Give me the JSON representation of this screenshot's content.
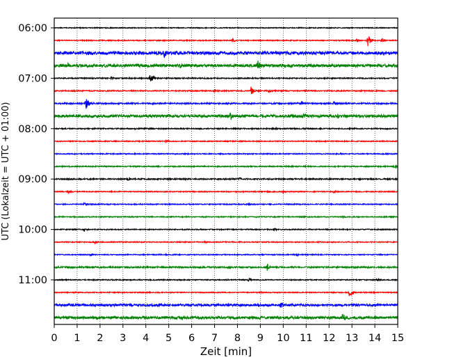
{
  "chart_data": {
    "type": "line",
    "title": "",
    "xlabel": "Zeit  [min]",
    "ylabel": "UTC (Lokalzeit = UTC + 01:00)",
    "xlim": [
      0,
      15
    ],
    "x_ticks": [
      0,
      1,
      2,
      3,
      4,
      5,
      6,
      7,
      8,
      9,
      10,
      11,
      12,
      13,
      14,
      15
    ],
    "y_ticks": [
      "06:00",
      "07:00",
      "08:00",
      "09:00",
      "10:00",
      "11:00"
    ],
    "grid": {
      "x": true,
      "y": false
    },
    "trace_colors": [
      "#000000",
      "#ff0000",
      "#0000ff",
      "#008000"
    ],
    "trace_start": "06:00",
    "trace_interval_min": 15,
    "traces": [
      {
        "time": "06:00",
        "color": "#000000",
        "noise": 0.6,
        "events": []
      },
      {
        "time": "06:15",
        "color": "#ff0000",
        "noise": 0.7,
        "events": [
          [
            7.8,
            3.5
          ],
          [
            13.7,
            9
          ],
          [
            13.2,
            2.5
          ],
          [
            14.3,
            3
          ]
        ]
      },
      {
        "time": "06:30",
        "color": "#0000ff",
        "noise": 2.2,
        "events": [
          [
            4.8,
            8
          ],
          [
            6.4,
            3
          ],
          [
            1.5,
            3
          ]
        ]
      },
      {
        "time": "06:45",
        "color": "#008000",
        "noise": 2.0,
        "events": [
          [
            0.6,
            4
          ],
          [
            5.5,
            4
          ],
          [
            8.9,
            8
          ],
          [
            1.0,
            3
          ]
        ]
      },
      {
        "time": "07:00",
        "color": "#000000",
        "noise": 0.8,
        "events": [
          [
            4.2,
            9
          ],
          [
            2.5,
            2.5
          ]
        ]
      },
      {
        "time": "07:15",
        "color": "#ff0000",
        "noise": 0.8,
        "events": [
          [
            8.6,
            7
          ],
          [
            9.4,
            3
          ],
          [
            7.0,
            2.5
          ]
        ]
      },
      {
        "time": "07:30",
        "color": "#0000ff",
        "noise": 1.0,
        "events": [
          [
            1.4,
            8
          ],
          [
            10.8,
            3.5
          ],
          [
            12.2,
            2.5
          ]
        ]
      },
      {
        "time": "07:45",
        "color": "#008000",
        "noise": 1.9,
        "events": [
          [
            7.7,
            7
          ],
          [
            10.9,
            5
          ],
          [
            12.4,
            3.5
          ],
          [
            10.4,
            3
          ]
        ]
      },
      {
        "time": "08:00",
        "color": "#000000",
        "noise": 0.8,
        "events": [
          [
            9.7,
            3
          ]
        ]
      },
      {
        "time": "08:15",
        "color": "#ff0000",
        "noise": 0.7,
        "events": [
          [
            4.9,
            2.5
          ]
        ]
      },
      {
        "time": "08:30",
        "color": "#0000ff",
        "noise": 0.7,
        "events": [
          [
            12.5,
            2.5
          ]
        ]
      },
      {
        "time": "08:45",
        "color": "#008000",
        "noise": 0.8,
        "events": [
          [
            14.9,
            3.5
          ]
        ]
      },
      {
        "time": "09:00",
        "color": "#000000",
        "noise": 0.9,
        "events": [
          [
            3.2,
            2.5
          ],
          [
            8.1,
            2.5
          ]
        ]
      },
      {
        "time": "09:15",
        "color": "#ff0000",
        "noise": 0.7,
        "events": [
          [
            0.6,
            3
          ],
          [
            10.0,
            2.5
          ],
          [
            12.2,
            2.5
          ]
        ]
      },
      {
        "time": "09:30",
        "color": "#0000ff",
        "noise": 0.7,
        "events": [
          [
            1.3,
            3
          ],
          [
            8.5,
            2.5
          ]
        ]
      },
      {
        "time": "09:45",
        "color": "#008000",
        "noise": 0.7,
        "events": [
          [
            12.6,
            2.5
          ]
        ]
      },
      {
        "time": "10:00",
        "color": "#000000",
        "noise": 0.7,
        "events": [
          [
            1.3,
            3.5
          ],
          [
            9.6,
            2.5
          ]
        ]
      },
      {
        "time": "10:15",
        "color": "#ff0000",
        "noise": 0.7,
        "events": [
          [
            1.8,
            3
          ],
          [
            6.6,
            2.5
          ]
        ]
      },
      {
        "time": "10:30",
        "color": "#0000ff",
        "noise": 0.7,
        "events": [
          [
            1.6,
            2.5
          ],
          [
            10.6,
            2.5
          ]
        ]
      },
      {
        "time": "10:45",
        "color": "#008000",
        "noise": 1.1,
        "events": [
          [
            7.6,
            3
          ],
          [
            9.3,
            5
          ]
        ]
      },
      {
        "time": "11:00",
        "color": "#000000",
        "noise": 0.7,
        "events": [
          [
            8.5,
            3
          ],
          [
            14.1,
            2.5
          ]
        ]
      },
      {
        "time": "11:15",
        "color": "#ff0000",
        "noise": 0.7,
        "events": [
          [
            12.9,
            8
          ],
          [
            9.0,
            2.5
          ]
        ]
      },
      {
        "time": "11:30",
        "color": "#0000ff",
        "noise": 1.6,
        "events": [
          [
            9.9,
            5
          ],
          [
            4.6,
            3.5
          ],
          [
            8.9,
            3
          ]
        ]
      },
      {
        "time": "11:45",
        "color": "#008000",
        "noise": 1.9,
        "events": [
          [
            12.6,
            7
          ],
          [
            3.9,
            4
          ],
          [
            5.6,
            4
          ],
          [
            9.0,
            3
          ]
        ]
      }
    ]
  }
}
